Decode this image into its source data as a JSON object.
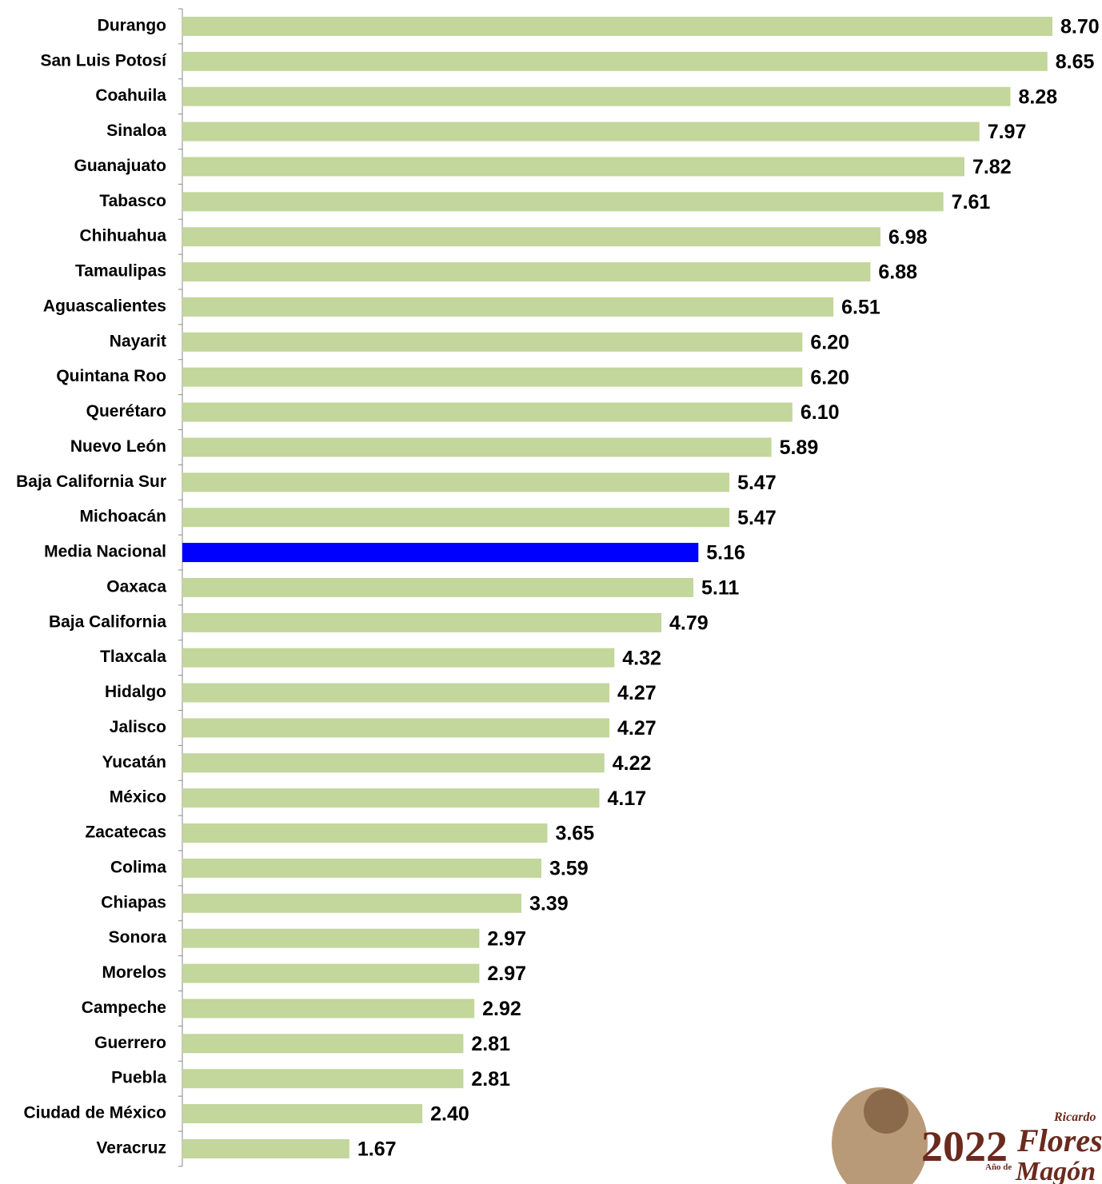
{
  "chart_data": {
    "type": "hbar",
    "categories": [
      "Durango",
      "San Luis Potosí",
      "Coahuila",
      "Sinaloa",
      "Guanajuato",
      "Tabasco",
      "Chihuahua",
      "Tamaulipas",
      "Aguascalientes",
      "Nayarit",
      "Quintana Roo",
      "Querétaro",
      "Nuevo León",
      "Baja California Sur",
      "Michoacán",
      "Media Nacional",
      "Oaxaca",
      "Baja California",
      "Tlaxcala",
      "Hidalgo",
      "Jalisco",
      "Yucatán",
      "México",
      "Zacatecas",
      "Colima",
      "Chiapas",
      "Sonora",
      "Morelos",
      "Campeche",
      "Guerrero",
      "Puebla",
      "Ciudad de México",
      "Veracruz"
    ],
    "values": [
      8.7,
      8.65,
      8.28,
      7.97,
      7.82,
      7.61,
      6.98,
      6.88,
      6.51,
      6.2,
      6.2,
      6.1,
      5.89,
      5.47,
      5.47,
      5.16,
      5.11,
      4.79,
      4.32,
      4.27,
      4.27,
      4.22,
      4.17,
      3.65,
      3.59,
      3.39,
      2.97,
      2.97,
      2.92,
      2.81,
      2.81,
      2.4,
      1.67
    ],
    "value_labels": [
      "8.70",
      "8.65",
      "8.28",
      "7.97",
      "7.82",
      "7.61",
      "6.98",
      "6.88",
      "6.51",
      "6.20",
      "6.20",
      "6.10",
      "5.89",
      "5.47",
      "5.47",
      "5.16",
      "5.11",
      "4.79",
      "4.32",
      "4.27",
      "4.27",
      "4.22",
      "4.17",
      "3.65",
      "3.59",
      "3.39",
      "2.97",
      "2.97",
      "2.92",
      "2.81",
      "2.81",
      "2.40",
      "1.67"
    ],
    "colors": [
      "#c3d69b",
      "#c3d69b",
      "#c3d69b",
      "#c3d69b",
      "#c3d69b",
      "#c3d69b",
      "#c3d69b",
      "#c3d69b",
      "#c3d69b",
      "#c3d69b",
      "#c3d69b",
      "#c3d69b",
      "#c3d69b",
      "#c3d69b",
      "#c3d69b",
      "#0000ff",
      "#c3d69b",
      "#c3d69b",
      "#c3d69b",
      "#c3d69b",
      "#c3d69b",
      "#c3d69b",
      "#c3d69b",
      "#c3d69b",
      "#c3d69b",
      "#c3d69b",
      "#c3d69b",
      "#c3d69b",
      "#c3d69b",
      "#c3d69b",
      "#c3d69b",
      "#c3d69b",
      "#c3d69b"
    ]
  },
  "logo": {
    "year": "2022",
    "prefix": "Año de",
    "first_name": "Ricardo",
    "surname_1": "Flores",
    "surname_2": "Magón"
  }
}
